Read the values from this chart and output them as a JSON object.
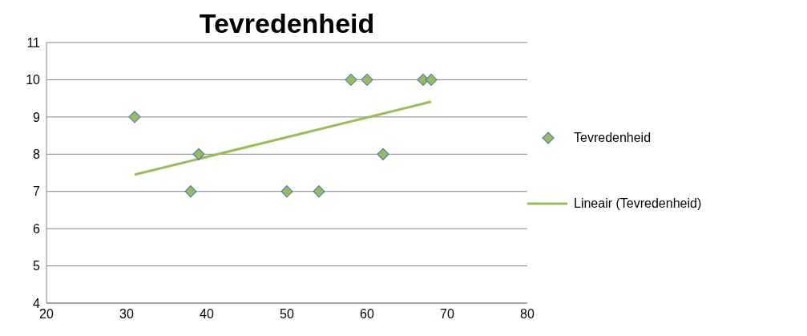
{
  "chart_data": {
    "type": "scatter",
    "title": "Tevredenheid",
    "xlim": [
      20,
      80
    ],
    "xticks": [
      20,
      30,
      40,
      50,
      60,
      70,
      80
    ],
    "ylim": [
      4,
      11
    ],
    "yticks": [
      4,
      5,
      6,
      7,
      8,
      9,
      10,
      11
    ],
    "grid": "y",
    "legend": "right",
    "series": [
      {
        "name": "Tevredenheid",
        "marker": "diamond",
        "color": "#9bbb59",
        "x": [
          31,
          38,
          39,
          50,
          54,
          58,
          60,
          62,
          67,
          68
        ],
        "values": [
          9,
          7,
          8,
          7,
          7,
          10,
          10,
          8,
          10,
          10
        ]
      },
      {
        "name": "Lineair (Tevredenheid)",
        "type": "line",
        "marker": "none",
        "color": "#9bbb59",
        "x": [
          31,
          68
        ],
        "values": [
          7.45,
          9.41
        ]
      }
    ]
  }
}
